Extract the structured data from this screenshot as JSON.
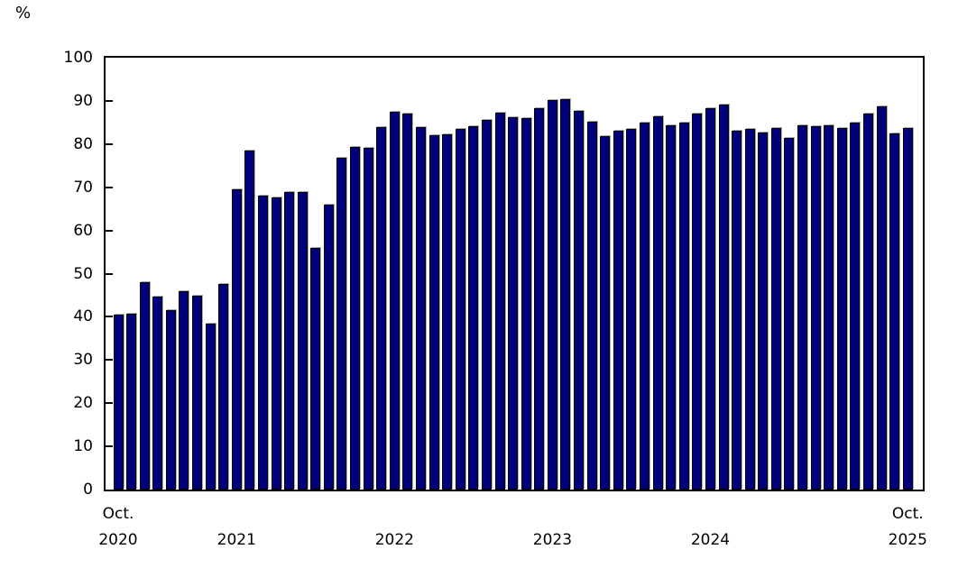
{
  "y_axis": {
    "unit_label": "%",
    "tick_labels": [
      "100",
      "90",
      "80",
      "70",
      "60",
      "50",
      "40",
      "30",
      "20",
      "10",
      "0"
    ],
    "tick_values": [
      100,
      90,
      80,
      70,
      60,
      50,
      40,
      30,
      20,
      10,
      0
    ]
  },
  "x_axis": {
    "tick_marks": [
      {
        "month_index": 0,
        "line1": "Oct.",
        "line2": "2020"
      },
      {
        "month_index": 9,
        "line1": "",
        "line2": "2021"
      },
      {
        "month_index": 21,
        "line1": "",
        "line2": "2022"
      },
      {
        "month_index": 33,
        "line1": "",
        "line2": "2023"
      },
      {
        "month_index": 45,
        "line1": "",
        "line2": "2024"
      },
      {
        "month_index": 60,
        "line1": "Oct.",
        "line2": "2025"
      }
    ]
  },
  "chart_data": {
    "type": "bar",
    "title": "",
    "ylabel": "%",
    "xlabel": "",
    "ylim": [
      0,
      100
    ],
    "y_tick_step": 10,
    "grid": "off",
    "legend": "none",
    "bar_color": "#00007D",
    "bar_border_color": "#000000",
    "bar_bevel_color": "#ABABAB",
    "axis_color": "#000000",
    "x": [
      "Oct. 2020",
      "Nov. 2020",
      "Dec. 2020",
      "Jan. 2021",
      "Feb. 2021",
      "Mar. 2021",
      "Apr. 2021",
      "May 2021",
      "Jun. 2021",
      "Jul. 2021",
      "Aug. 2021",
      "Sep. 2021",
      "Oct. 2021",
      "Nov. 2021",
      "Dec. 2021",
      "Jan. 2022",
      "Feb. 2022",
      "Mar. 2022",
      "Apr. 2022",
      "May 2022",
      "Jun. 2022",
      "Jul. 2022",
      "Aug. 2022",
      "Sep. 2022",
      "Oct. 2022",
      "Nov. 2022",
      "Dec. 2022",
      "Jan. 2023",
      "Feb. 2023",
      "Mar. 2023",
      "Apr. 2023",
      "May 2023",
      "Jun. 2023",
      "Jul. 2023",
      "Aug. 2023",
      "Sep. 2023",
      "Oct. 2023",
      "Nov. 2023",
      "Dec. 2023",
      "Jan. 2024",
      "Feb. 2024",
      "Mar. 2024",
      "Apr. 2024",
      "May 2024",
      "Jun. 2024",
      "Jul. 2024",
      "Aug. 2024",
      "Sep. 2024",
      "Oct. 2024",
      "Nov. 2024",
      "Dec. 2024",
      "Jan. 2025",
      "Feb. 2025",
      "Mar. 2025",
      "Apr. 2025",
      "May 2025",
      "Jun. 2025",
      "Jul. 2025",
      "Aug. 2025",
      "Sep. 2025",
      "Oct. 2025"
    ],
    "values": [
      40.1,
      40.3,
      47.5,
      44.2,
      41.2,
      45.5,
      44.4,
      38.1,
      47.1,
      69.1,
      78.0,
      67.7,
      67.3,
      68.5,
      68.5,
      55.6,
      65.5,
      76.5,
      79.0,
      78.8,
      83.5,
      87.0,
      86.7,
      83.5,
      81.6,
      81.9,
      83.1,
      83.7,
      85.2,
      86.8,
      85.7,
      85.5,
      87.9,
      89.8,
      90.0,
      87.2,
      84.8,
      81.5,
      82.7,
      83.1,
      84.6,
      86.0,
      83.9,
      84.6,
      86.6,
      87.9,
      88.8,
      82.7,
      83.0,
      82.3,
      83.3,
      81.1,
      83.9,
      83.7,
      83.9,
      83.3,
      84.6,
      86.6,
      88.3,
      82.1,
      83.3
    ]
  }
}
